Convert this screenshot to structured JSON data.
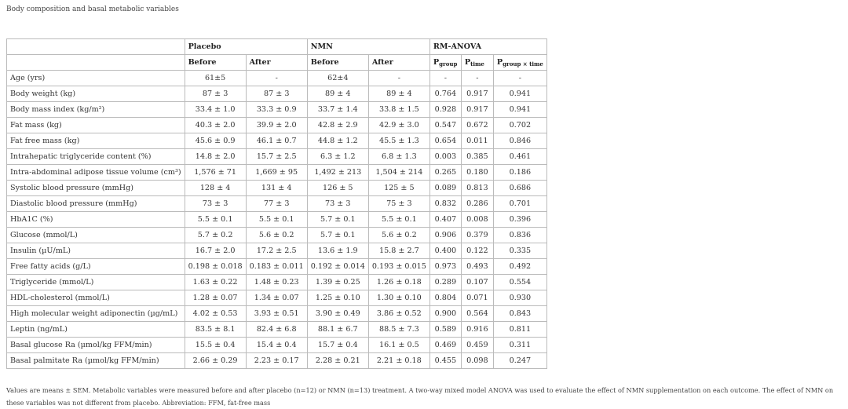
{
  "title": "Body composition and basal metabolic variables",
  "header": {
    "groups": [
      "Placebo",
      "NMN",
      "RM-ANOVA"
    ],
    "sub": [
      "Before",
      "After",
      "Before",
      "After"
    ],
    "p": [
      {
        "main": "P",
        "sub": "group"
      },
      {
        "main": "P",
        "sub": "time"
      },
      {
        "main": "P",
        "sub": "group × time"
      }
    ]
  },
  "rows": [
    {
      "label": "Age (yrs)",
      "vals": [
        "61±5",
        "-",
        "62±4",
        "-",
        "-",
        "-",
        "-"
      ]
    },
    {
      "label": "Body weight (kg)",
      "vals": [
        "87 ± 3",
        "87 ± 3",
        "89 ± 4",
        "89 ± 4",
        "0.764",
        "0.917",
        "0.941"
      ]
    },
    {
      "label": "Body mass index (kg/m²)",
      "vals": [
        "33.4 ± 1.0",
        "33.3 ± 0.9",
        "33.7 ± 1.4",
        "33.8 ± 1.5",
        "0.928",
        "0.917",
        "0.941"
      ]
    },
    {
      "label": "Fat mass (kg)",
      "vals": [
        "40.3 ± 2.0",
        "39.9 ± 2.0",
        "42.8 ± 2.9",
        "42.9 ± 3.0",
        "0.547",
        "0.672",
        "0.702"
      ]
    },
    {
      "label": "Fat free mass (kg)",
      "vals": [
        "45.6 ± 0.9",
        "46.1 ± 0.7",
        "44.8 ± 1.2",
        "45.5 ± 1.3",
        "0.654",
        "0.011",
        "0.846"
      ]
    },
    {
      "label": "Intrahepatic triglyceride content (%)",
      "vals": [
        "14.8 ± 2.0",
        "15.7 ± 2.5",
        "6.3 ± 1.2",
        "6.8 ± 1.3",
        "0.003",
        "0.385",
        "0.461"
      ]
    },
    {
      "label": "Intra-abdominal adipose tissue volume (cm³)",
      "vals": [
        "1,576 ± 71",
        "1,669 ± 95",
        "1,492 ± 213",
        "1,504 ± 214",
        "0.265",
        "0.180",
        "0.186"
      ]
    },
    {
      "label": "Systolic blood pressure (mmHg)",
      "vals": [
        "128 ± 4",
        "131 ± 4",
        "126 ± 5",
        "125 ± 5",
        "0.089",
        "0.813",
        "0.686"
      ]
    },
    {
      "label": "Diastolic blood pressure (mmHg)",
      "vals": [
        "73 ± 3",
        "77 ± 3",
        "73 ± 3",
        "75 ± 3",
        "0.832",
        "0.286",
        "0.701"
      ]
    },
    {
      "label": "HbA1C (%)",
      "vals": [
        "5.5 ± 0.1",
        "5.5 ± 0.1",
        "5.7 ± 0.1",
        "5.5 ± 0.1",
        "0.407",
        "0.008",
        "0.396"
      ]
    },
    {
      "label": "Glucose (mmol/L)",
      "vals": [
        "5.7 ± 0.2",
        "5.6 ± 0.2",
        "5.7 ± 0.1",
        "5.6 ± 0.2",
        "0.906",
        "0.379",
        "0.836"
      ]
    },
    {
      "label": "Insulin (µU/mL)",
      "vals": [
        "16.7 ± 2.0",
        "17.2 ± 2.5",
        "13.6 ± 1.9",
        "15.8 ± 2.7",
        "0.400",
        "0.122",
        "0.335"
      ]
    },
    {
      "label": "Free fatty acids (g/L)",
      "vals": [
        "0.198 ± 0.018",
        "0.183 ± 0.011",
        "0.192 ± 0.014",
        "0.193 ± 0.015",
        "0.973",
        "0.493",
        "0.492"
      ]
    },
    {
      "label": "Triglyceride (mmol/L)",
      "vals": [
        "1.63 ± 0.22",
        "1.48 ± 0.23",
        "1.39 ± 0.25",
        "1.26 ± 0.18",
        "0.289",
        "0.107",
        "0.554"
      ]
    },
    {
      "label": "HDL-cholesterol (mmol/L)",
      "vals": [
        "1.28 ± 0.07",
        "1.34 ± 0.07",
        "1.25 ± 0.10",
        "1.30 ± 0.10",
        "0.804",
        "0.071",
        "0.930"
      ]
    },
    {
      "label": "High molecular weight adiponectin (µg/mL)",
      "vals": [
        "4.02 ± 0.53",
        "3.93 ± 0.51",
        "3.90 ± 0.49",
        "3.86 ± 0.52",
        "0.900",
        "0.564",
        "0.843"
      ]
    },
    {
      "label": "Leptin (ng/mL)",
      "vals": [
        "83.5 ± 8.1",
        "82.4 ± 6.8",
        "88.1 ± 6.7",
        "88.5 ± 7.3",
        "0.589",
        "0.916",
        "0.811"
      ]
    },
    {
      "label": "Basal glucose Ra (µmol/kg FFM/min)",
      "vals": [
        "15.5 ± 0.4",
        "15.4 ± 0.4",
        "15.7 ± 0.4",
        "16.1 ± 0.5",
        "0.469",
        "0.459",
        "0.311"
      ]
    },
    {
      "label": "Basal palmitate Ra (µmol/kg FFM/min)",
      "vals": [
        "2.66 ± 0.29",
        "2.23 ± 0.17",
        "2.28 ± 0.21",
        "2.21 ± 0.18",
        "0.455",
        "0.098",
        "0.247"
      ]
    }
  ],
  "footnote": "Values are means ± SEM. Metabolic variables were measured before and after placebo (n=12) or NMN (n=13) treatment. A two-way mixed model ANOVA was used to evaluate the effect of NMN supplementation on each outcome. The effect of NMN on these variables was not different from placebo. Abbreviation: FFM, fat-free mass"
}
